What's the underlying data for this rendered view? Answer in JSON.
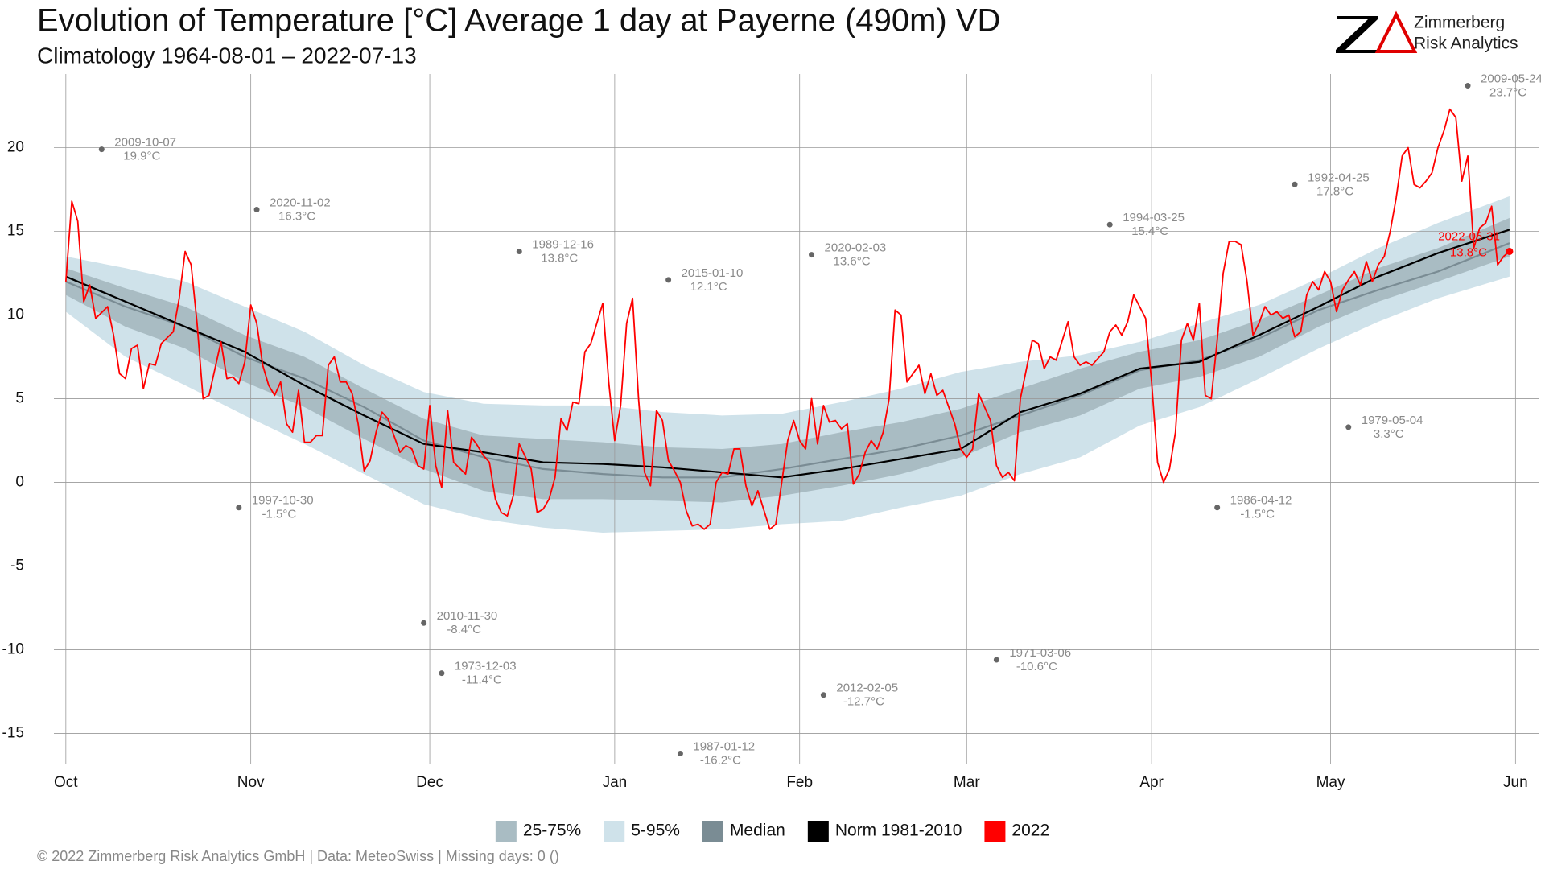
{
  "chart_data": {
    "type": "line",
    "title": "Evolution of Temperature [°C] Average 1 day at Payerne (490m) VD",
    "subtitle": "Climatology 1964-08-01 – 2022-07-13",
    "logo": {
      "line1": "Zimmerberg",
      "line2": "Risk Analytics"
    },
    "footer": "©  2022 Zimmerberg Risk Analytics GmbH | Data: MeteoSwiss | Missing days: 0 ()",
    "xlim": [
      -2,
      247
    ],
    "xticks": [
      {
        "value": 0,
        "label": "Oct"
      },
      {
        "value": 31,
        "label": "Nov"
      },
      {
        "value": 61,
        "label": "Dec"
      },
      {
        "value": 92,
        "label": "Jan"
      },
      {
        "value": 123,
        "label": "Feb"
      },
      {
        "value": 151,
        "label": "Mar"
      },
      {
        "value": 182,
        "label": "Apr"
      },
      {
        "value": 212,
        "label": "May"
      },
      {
        "value": 243,
        "label": "Jun"
      }
    ],
    "ylim": [
      -16.8,
      24.4
    ],
    "yticks": [
      -15,
      -10,
      -5,
      0,
      5,
      10,
      15,
      20
    ],
    "grid": true,
    "bands": [
      {
        "name": "25-75%",
        "color": "#a9bcc3",
        "x": [
          0,
          10,
          20,
          30,
          40,
          50,
          60,
          70,
          80,
          90,
          100,
          110,
          120,
          130,
          140,
          150,
          160,
          170,
          180,
          190,
          200,
          210,
          220,
          230,
          242
        ],
        "low": [
          11.2,
          9.3,
          8.0,
          6.0,
          4.5,
          2.6,
          0.8,
          -0.5,
          -1.0,
          -1.0,
          -1.1,
          -1.2,
          -0.8,
          -0.2,
          0.5,
          1.5,
          3.0,
          4.0,
          5.6,
          6.3,
          7.5,
          9.3,
          10.8,
          12.0,
          13.5
        ],
        "high": [
          12.8,
          11.6,
          10.5,
          8.8,
          7.5,
          5.6,
          3.8,
          2.8,
          2.6,
          2.4,
          2.1,
          2.0,
          2.3,
          3.0,
          3.6,
          4.4,
          5.6,
          6.8,
          7.8,
          8.5,
          9.7,
          11.2,
          12.8,
          14.0,
          15.8
        ]
      },
      {
        "name": "5-95%",
        "color": "#cfe2ea",
        "x": [
          0,
          10,
          20,
          30,
          40,
          50,
          60,
          70,
          80,
          90,
          100,
          110,
          120,
          130,
          140,
          150,
          160,
          170,
          180,
          190,
          200,
          210,
          220,
          230,
          242
        ],
        "low": [
          10.2,
          7.5,
          5.8,
          4.0,
          2.3,
          0.5,
          -1.3,
          -2.2,
          -2.7,
          -3.0,
          -2.9,
          -2.8,
          -2.5,
          -2.3,
          -1.5,
          -0.8,
          0.5,
          1.5,
          3.4,
          4.5,
          6.2,
          8.0,
          9.6,
          11.0,
          12.3
        ],
        "high": [
          13.5,
          12.8,
          12.0,
          10.5,
          9.0,
          7.0,
          5.4,
          4.7,
          4.6,
          4.6,
          4.2,
          4.0,
          4.1,
          4.8,
          5.6,
          6.6,
          7.2,
          7.6,
          8.4,
          9.5,
          10.6,
          12.2,
          14.0,
          15.5,
          17.1
        ]
      }
    ],
    "series": [
      {
        "name": "Median",
        "color": "#7a8c94",
        "x": [
          0,
          10,
          20,
          30,
          40,
          50,
          60,
          70,
          80,
          90,
          100,
          110,
          120,
          130,
          140,
          150,
          160,
          170,
          180,
          190,
          200,
          210,
          220,
          230,
          242
        ],
        "values": [
          12,
          10.5,
          9.3,
          7.5,
          6.2,
          4.5,
          2.5,
          1.5,
          0.8,
          0.5,
          0.3,
          0.3,
          0.8,
          1.4,
          2.0,
          2.8,
          4.0,
          5.2,
          6.7,
          7.3,
          8.6,
          10.3,
          11.5,
          12.6,
          14.3
        ]
      },
      {
        "name": "Norm 1981-2010",
        "color": "#000000",
        "x": [
          0,
          10,
          20,
          30,
          40,
          50,
          60,
          70,
          80,
          90,
          100,
          110,
          120,
          130,
          140,
          150,
          160,
          170,
          180,
          190,
          200,
          210,
          220,
          230,
          242
        ],
        "values": [
          12.3,
          10.8,
          9.3,
          7.8,
          5.8,
          4.0,
          2.3,
          1.8,
          1.2,
          1.1,
          0.9,
          0.6,
          0.3,
          0.8,
          1.4,
          2.0,
          4.2,
          5.3,
          6.8,
          7.2,
          8.8,
          10.5,
          12.3,
          13.7,
          15.1
        ]
      },
      {
        "name": "2022",
        "color": "#ff0000",
        "x": [
          0,
          1,
          2,
          3,
          4,
          5,
          7,
          8,
          9,
          10,
          11,
          12,
          13,
          14,
          15,
          16,
          18,
          19,
          20,
          21,
          22,
          23,
          24,
          26,
          27,
          28,
          29,
          30,
          31,
          32,
          33,
          34,
          35,
          36,
          37,
          38,
          39,
          40,
          41,
          42,
          43,
          44,
          45,
          46,
          47,
          48,
          49,
          50,
          51,
          52,
          53,
          54,
          55,
          56,
          57,
          58,
          59,
          60,
          61,
          62,
          63,
          64,
          65,
          67,
          68,
          69,
          70,
          71,
          72,
          73,
          74,
          75,
          76,
          78,
          79,
          80,
          81,
          82,
          83,
          84,
          85,
          86,
          87,
          88,
          90,
          91,
          92,
          93,
          94,
          95,
          96,
          97,
          98,
          99,
          100,
          101,
          102,
          103,
          104,
          105,
          106,
          107,
          108,
          109,
          110,
          111,
          112,
          113,
          114,
          115,
          116,
          118,
          119,
          120,
          121,
          122,
          123,
          124,
          125,
          126,
          127,
          128,
          129,
          130,
          131,
          132,
          133,
          134,
          135,
          136,
          137,
          138,
          139,
          140,
          141,
          143,
          144,
          145,
          146,
          147,
          149,
          150,
          151,
          152,
          153,
          155,
          156,
          157,
          158,
          159,
          160,
          162,
          163,
          164,
          165,
          166,
          168,
          169,
          170,
          171,
          172,
          174,
          175,
          176,
          177,
          178,
          179,
          181,
          182,
          183,
          184,
          185,
          186,
          187,
          188,
          189,
          190,
          191,
          192,
          193,
          194,
          195,
          196,
          197,
          198,
          199,
          200,
          201,
          202,
          203,
          204,
          205,
          206,
          207,
          208,
          209,
          210,
          211,
          212,
          213,
          214,
          215,
          216,
          217,
          218,
          219,
          220,
          221,
          222,
          223,
          224,
          225,
          226,
          227,
          228,
          229,
          230,
          231,
          232,
          233,
          234,
          235,
          236,
          237,
          238,
          239,
          240,
          241,
          242
        ],
        "values": [
          12,
          16.8,
          15.6,
          10.8,
          11.8,
          9.8,
          10.5,
          8.8,
          6.5,
          6.2,
          8.0,
          8.2,
          5.6,
          7.1,
          7.0,
          8.3,
          9.0,
          11.0,
          13.8,
          13.0,
          9.5,
          5.0,
          5.2,
          8.4,
          6.2,
          6.3,
          5.9,
          7.2,
          10.6,
          9.5,
          7.0,
          5.8,
          5.2,
          6.0,
          3.5,
          3.0,
          5.5,
          2.4,
          2.4,
          2.8,
          2.8,
          7.0,
          7.5,
          6.0,
          6.0,
          5.3,
          3.5,
          0.7,
          1.3,
          3.0,
          4.2,
          3.8,
          2.8,
          1.8,
          2.2,
          2.0,
          1.0,
          0.8,
          4.6,
          1.0,
          -0.3,
          4.3,
          1.2,
          0.5,
          2.7,
          2.2,
          1.6,
          1.2,
          -1.0,
          -1.8,
          -2.0,
          -0.8,
          2.3,
          0.8,
          -1.8,
          -1.6,
          -1.0,
          0.3,
          3.8,
          3.1,
          4.8,
          4.7,
          7.8,
          8.3,
          10.7,
          6.0,
          2.5,
          4.6,
          9.5,
          11.0,
          5.0,
          0.6,
          -0.2,
          4.3,
          3.7,
          1.3,
          0.7,
          0.0,
          -1.7,
          -2.6,
          -2.5,
          -2.8,
          -2.5,
          0.0,
          0.6,
          0.5,
          2.0,
          2.0,
          -0.2,
          -1.4,
          -0.5,
          -2.8,
          -2.5,
          0.0,
          2.5,
          3.7,
          2.5,
          2.0,
          5.0,
          2.3,
          4.6,
          3.6,
          3.7,
          3.2,
          3.5,
          -0.1,
          0.5,
          1.8,
          2.5,
          2.0,
          3.0,
          5.0,
          10.3,
          10.0,
          6.0,
          7.0,
          5.3,
          6.5,
          5.2,
          5.5,
          3.5,
          2.0,
          1.5,
          2.0,
          5.3,
          3.7,
          1.0,
          0.3,
          0.6,
          0.1,
          5.0,
          8.5,
          8.3,
          6.8,
          7.5,
          7.3,
          9.6,
          7.5,
          7.0,
          7.2,
          7.0,
          7.8,
          9.0,
          9.4,
          8.8,
          9.6,
          11.2,
          9.8,
          6.0,
          1.2,
          0.0,
          0.8,
          3.0,
          8.5,
          9.5,
          8.5,
          10.7,
          5.2,
          5.0,
          8.5,
          12.5,
          14.4,
          14.4,
          14.2,
          12.0,
          8.8,
          9.5,
          10.5,
          10.0,
          10.2,
          9.8,
          10.0,
          8.7,
          9.0,
          11.2,
          12.0,
          11.5,
          12.6,
          12.0,
          10.2,
          11.5,
          12.1,
          12.6,
          11.8,
          13.2,
          12.0,
          13.0,
          13.5,
          15.0,
          17.0,
          19.5,
          20.0,
          17.8,
          17.6,
          18.0,
          18.5,
          20.0,
          21.0,
          22.3,
          21.8,
          18.0,
          19.5,
          14.0,
          15.2,
          15.5,
          16.5,
          13.0,
          13.5,
          13.8
        ]
      }
    ],
    "records": [
      {
        "date": "2009-10-07",
        "x": 6,
        "value": 19.9,
        "label": "19.9°C"
      },
      {
        "date": "2020-11-02",
        "x": 32,
        "value": 16.3,
        "label": "16.3°C"
      },
      {
        "date": "1997-10-30",
        "x": 29,
        "value": -1.5,
        "label": "-1.5°C"
      },
      {
        "date": "2010-11-30",
        "x": 60,
        "value": -8.4,
        "label": "-8.4°C"
      },
      {
        "date": "1973-12-03",
        "x": 63,
        "value": -11.4,
        "label": "-11.4°C"
      },
      {
        "date": "1989-12-16",
        "x": 76,
        "value": 13.8,
        "label": "13.8°C"
      },
      {
        "date": "2015-01-10",
        "x": 101,
        "value": 12.1,
        "label": "12.1°C"
      },
      {
        "date": "1987-01-12",
        "x": 103,
        "value": -16.2,
        "label": "-16.2°C"
      },
      {
        "date": "2020-02-03",
        "x": 125,
        "value": 13.6,
        "label": "13.6°C"
      },
      {
        "date": "2012-02-05",
        "x": 127,
        "value": -12.7,
        "label": "-12.7°C"
      },
      {
        "date": "1971-03-06",
        "x": 156,
        "value": -10.6,
        "label": "-10.6°C"
      },
      {
        "date": "1994-03-25",
        "x": 175,
        "value": 15.4,
        "label": "15.4°C"
      },
      {
        "date": "1986-04-12",
        "x": 193,
        "value": -1.5,
        "label": "-1.5°C"
      },
      {
        "date": "1992-04-25",
        "x": 206,
        "value": 17.8,
        "label": "17.8°C"
      },
      {
        "date": "1979-05-04",
        "x": 215,
        "value": 3.3,
        "label": "3.3°C"
      },
      {
        "date": "2009-05-24",
        "x": 235,
        "value": 23.7,
        "label": "23.7°C"
      }
    ],
    "last": {
      "date": "2022-05-31",
      "x": 242,
      "value": 13.8,
      "label": "13.8°C",
      "color": "#ff0000"
    }
  }
}
